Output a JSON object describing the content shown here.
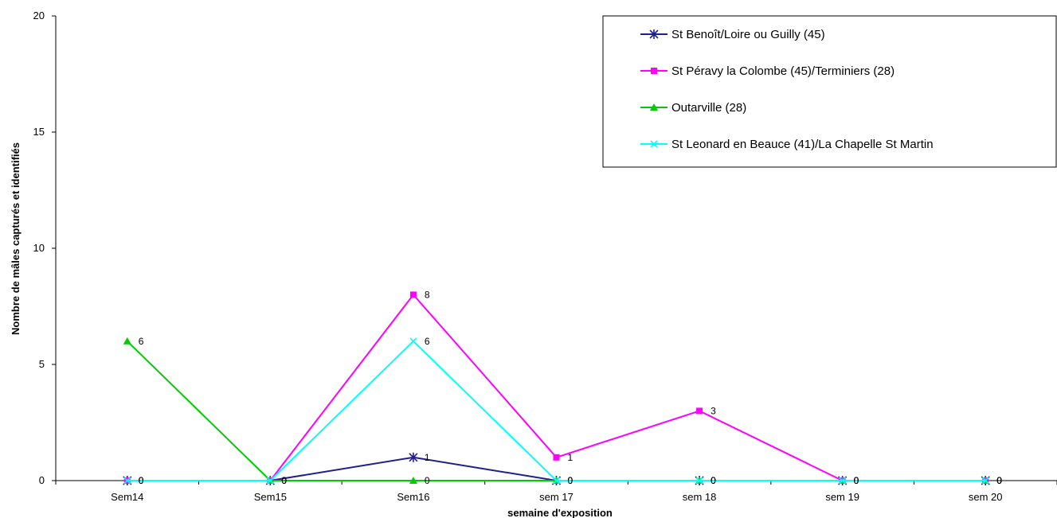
{
  "chart_data": {
    "type": "line",
    "categories": [
      "Sem14",
      "Sem15",
      "Sem16",
      "sem 17",
      "sem 18",
      "sem 19",
      "sem 20"
    ],
    "xlabel": "semaine d'exposition",
    "ylabel": "Nombre de mâles capturés et identifiés",
    "ylim": [
      0,
      20
    ],
    "yticks": [
      0,
      5,
      10,
      15,
      20
    ],
    "grid": false,
    "legend_position": "top-right",
    "series": [
      {
        "name": "St Benoît/Loire ou Guilly (45)",
        "color": "#1f1f8f",
        "marker": "asterisk",
        "values": [
          0,
          0,
          1,
          0,
          0,
          0,
          0
        ]
      },
      {
        "name": "St Péravy la Colombe (45)/Terminiers (28)",
        "color": "#ff00ff",
        "marker": "square",
        "values": [
          0,
          0,
          8,
          1,
          3,
          0,
          0
        ]
      },
      {
        "name": "Outarville (28)",
        "color": "#00cc00",
        "marker": "triangle",
        "values": [
          6,
          0,
          0,
          0,
          0,
          0,
          0
        ]
      },
      {
        "name": "St Leonard en Beauce (41)/La Chapelle St Martin",
        "color": "#00ffff",
        "marker": "x",
        "values": [
          0,
          0,
          6,
          0,
          0,
          0,
          0
        ]
      }
    ]
  }
}
